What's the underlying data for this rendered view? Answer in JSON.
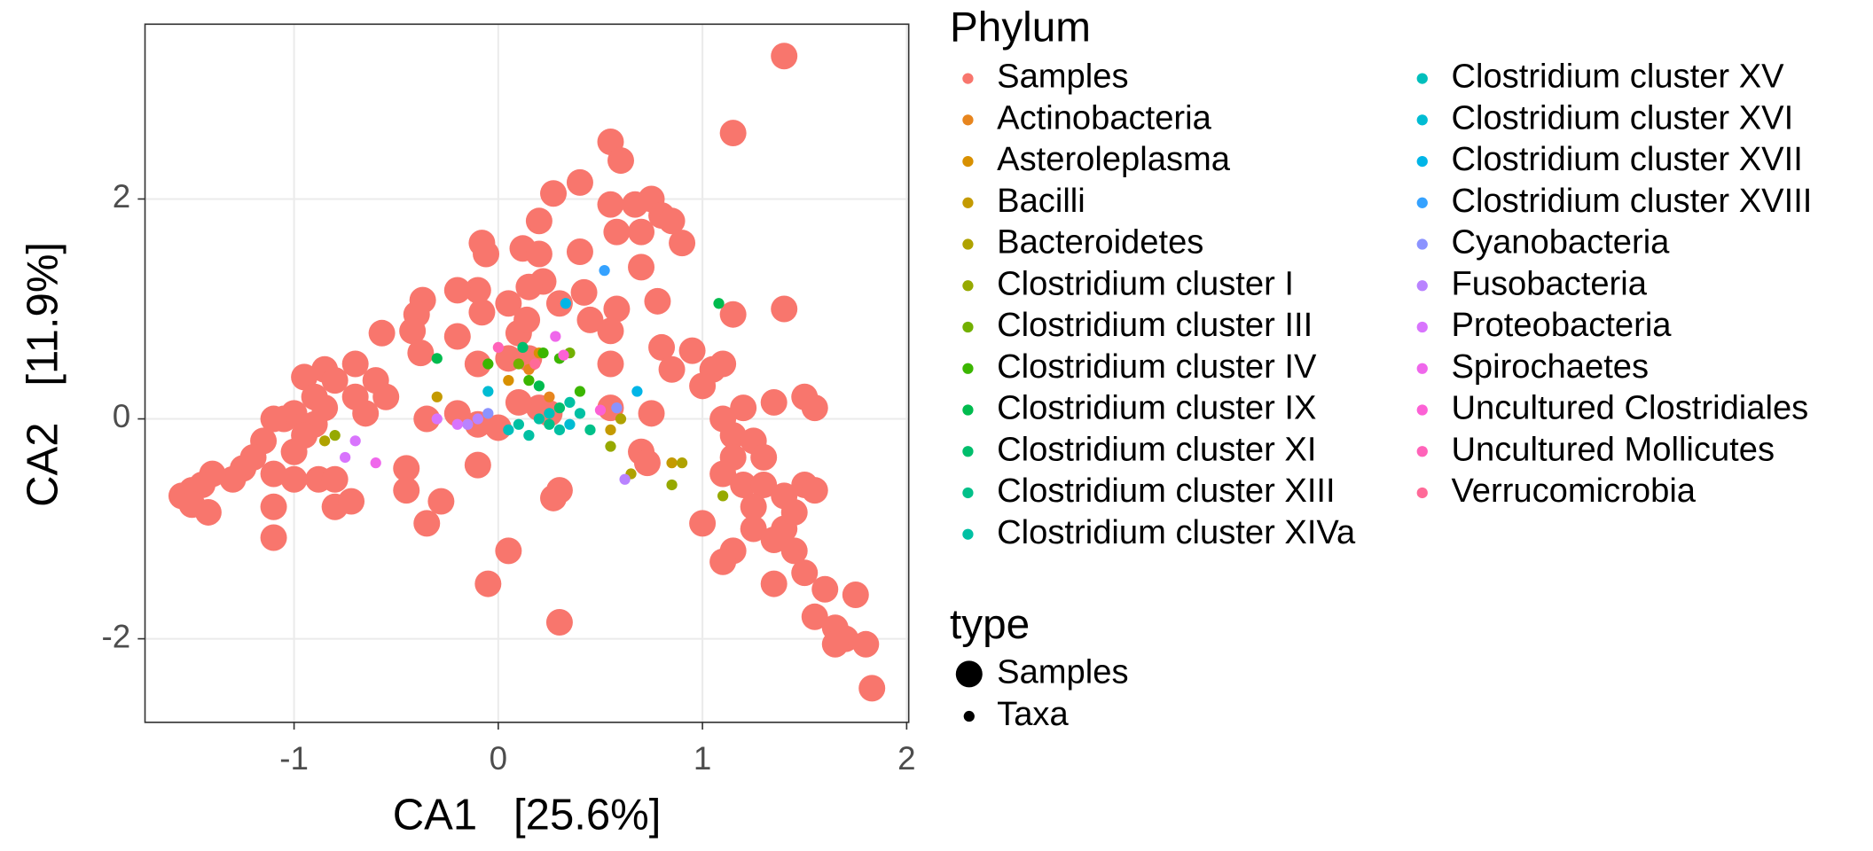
{
  "chart_data": {
    "type": "scatter",
    "xlabel": "CA1   [25.6%]",
    "ylabel": "CA2   [11.9%]",
    "xlim": [
      -1.73,
      2.01
    ],
    "ylim": [
      -2.76,
      3.59
    ],
    "xticks": [
      -1,
      0,
      1,
      2
    ],
    "yticks": [
      -2,
      0,
      2
    ],
    "grid": true,
    "legend_title": "Phylum",
    "size_legend": {
      "title": "type",
      "entries": [
        "Samples",
        "Taxa"
      ]
    },
    "series": [
      {
        "name": "Samples",
        "color": "#F8766D",
        "size_group": "Samples",
        "x": [
          1.4,
          1.15,
          0.55,
          0.6,
          0.4,
          0.27,
          0.55,
          0.67,
          0.75,
          0.8,
          0.85,
          0.7,
          0.58,
          0.9,
          0.2,
          -0.08,
          -0.06,
          0.12,
          0.2,
          0.4,
          0.7,
          0.22,
          0.15,
          0.05,
          -0.08,
          -0.1,
          -0.2,
          0.3,
          0.42,
          0.58,
          0.55,
          0.45,
          0.78,
          1.15,
          1.4,
          -0.37,
          -0.4,
          -0.42,
          -0.57,
          -0.2,
          -0.38,
          0.1,
          0.14,
          0.8,
          0.95,
          0.85,
          0.55,
          1.05,
          1.1,
          1.0,
          -0.1,
          0.05,
          0.15,
          -0.7,
          -0.85,
          -0.95,
          -0.8,
          -0.6,
          -0.55,
          -0.7,
          -0.9,
          -0.65,
          -0.85,
          -1.0,
          -1.05,
          -1.1,
          -0.9,
          -0.95,
          -1.0,
          -1.15,
          -1.2,
          -1.25,
          -1.1,
          -1.3,
          -1.4,
          -1.45,
          -1.5,
          -1.55,
          -1.5,
          -1.42,
          -1.1,
          -1.1,
          -1.0,
          -0.88,
          -0.8,
          -0.8,
          -0.72,
          -0.45,
          -0.45,
          -0.35,
          -0.28,
          -0.35,
          -0.2,
          -0.1,
          -0.1,
          0.0,
          -0.05,
          0.05,
          0.3,
          0.3,
          0.27,
          0.2,
          0.1,
          0.25,
          0.55,
          0.75,
          0.7,
          0.73,
          1.1,
          1.2,
          1.35,
          1.5,
          1.55,
          1.15,
          1.25,
          1.3,
          1.15,
          1.1,
          1.2,
          1.3,
          1.4,
          1.5,
          1.55,
          1.0,
          1.15,
          1.1,
          1.25,
          1.4,
          1.45,
          1.35,
          1.5,
          1.6,
          1.55,
          1.65,
          1.7,
          1.65,
          1.75,
          1.8,
          1.83,
          1.25,
          1.45,
          1.35
        ],
        "y": [
          3.3,
          2.6,
          2.52,
          2.35,
          2.15,
          2.05,
          1.95,
          1.95,
          2.0,
          1.85,
          1.8,
          1.7,
          1.7,
          1.6,
          1.8,
          1.6,
          1.5,
          1.55,
          1.5,
          1.52,
          1.38,
          1.25,
          1.2,
          1.05,
          0.97,
          1.17,
          1.17,
          1.05,
          1.15,
          1.0,
          0.8,
          0.9,
          1.07,
          0.95,
          1.0,
          1.08,
          0.95,
          0.8,
          0.78,
          0.75,
          0.6,
          0.78,
          0.9,
          0.65,
          0.62,
          0.45,
          0.5,
          0.45,
          0.5,
          0.3,
          0.5,
          0.55,
          0.55,
          0.5,
          0.45,
          0.38,
          0.35,
          0.35,
          0.2,
          0.2,
          0.2,
          0.05,
          0.1,
          0.05,
          0.0,
          0.0,
          -0.05,
          -0.15,
          -0.3,
          -0.2,
          -0.35,
          -0.45,
          -0.5,
          -0.55,
          -0.5,
          -0.6,
          -0.65,
          -0.7,
          -0.78,
          -0.85,
          -0.8,
          -1.08,
          -0.55,
          -0.55,
          -0.55,
          -0.8,
          -0.75,
          -0.45,
          -0.65,
          -0.95,
          -0.75,
          0.0,
          0.05,
          -0.05,
          -0.42,
          -0.08,
          -1.5,
          -1.2,
          -1.85,
          -0.65,
          -0.72,
          0.1,
          0.15,
          0.05,
          0.1,
          0.05,
          -0.3,
          -0.4,
          0.0,
          0.1,
          0.15,
          0.2,
          0.1,
          -0.15,
          -0.2,
          -0.35,
          -0.35,
          -0.5,
          -0.6,
          -0.6,
          -0.7,
          -0.6,
          -0.65,
          -0.95,
          -1.2,
          -1.3,
          -1.0,
          -1.0,
          -1.2,
          -1.5,
          -1.4,
          -1.55,
          -1.8,
          -1.9,
          -2.0,
          -2.05,
          -1.6,
          -2.05,
          -2.45,
          -0.8,
          -0.85,
          -1.1
        ]
      },
      {
        "name": "Actinobacteria",
        "color": "#E7851E",
        "size_group": "Taxa",
        "x": [
          0.25,
          0.15
        ],
        "y": [
          0.2,
          0.45
        ]
      },
      {
        "name": "Asteroleplasma",
        "color": "#D89000",
        "size_group": "Taxa",
        "x": [
          0.2,
          0.05
        ],
        "y": [
          0.6,
          0.35
        ]
      },
      {
        "name": "Bacilli",
        "color": "#C49A00",
        "size_group": "Taxa",
        "x": [
          0.55,
          0.85,
          -0.3
        ],
        "y": [
          -0.1,
          -0.4,
          0.2
        ]
      },
      {
        "name": "Bacteroidetes",
        "color": "#AFA200",
        "size_group": "Taxa",
        "x": [
          0.65,
          0.9,
          0.6,
          -0.85
        ],
        "y": [
          -0.5,
          -0.4,
          0.0,
          -0.2
        ]
      },
      {
        "name": "Clostridium cluster I",
        "color": "#96A900",
        "size_group": "Taxa",
        "x": [
          0.85,
          1.1,
          0.55,
          -0.8
        ],
        "y": [
          -0.6,
          -0.7,
          -0.25,
          -0.15
        ]
      },
      {
        "name": "Clostridium cluster III",
        "color": "#72B000",
        "size_group": "Taxa",
        "x": [
          0.1,
          0.35
        ],
        "y": [
          0.5,
          0.6
        ]
      },
      {
        "name": "Clostridium cluster IV",
        "color": "#3BB600",
        "size_group": "Taxa",
        "x": [
          -0.05,
          0.22,
          0.4,
          0.3,
          0.15
        ],
        "y": [
          0.5,
          0.6,
          0.25,
          0.55,
          0.35
        ]
      },
      {
        "name": "Clostridium cluster IX",
        "color": "#00BB4E",
        "size_group": "Taxa",
        "x": [
          -0.3,
          1.08,
          0.2
        ],
        "y": [
          0.55,
          1.05,
          0.3
        ]
      },
      {
        "name": "Clostridium cluster XI",
        "color": "#00BE6C",
        "size_group": "Taxa",
        "x": [
          0.12,
          0.3
        ],
        "y": [
          0.65,
          0.1
        ]
      },
      {
        "name": "Clostridium cluster XIII",
        "color": "#00C089",
        "size_group": "Taxa",
        "x": [
          0.25,
          0.45
        ],
        "y": [
          -0.05,
          -0.1
        ]
      },
      {
        "name": "Clostridium cluster XIVa",
        "color": "#00C0A3",
        "size_group": "Taxa",
        "x": [
          0.1,
          0.2,
          0.3,
          0.4,
          0.15,
          0.35
        ],
        "y": [
          -0.05,
          0.0,
          -0.1,
          0.05,
          -0.15,
          0.15
        ]
      },
      {
        "name": "Clostridium cluster XV",
        "color": "#00BFBC",
        "size_group": "Taxa",
        "x": [
          0.05,
          0.25
        ],
        "y": [
          -0.1,
          0.05
        ]
      },
      {
        "name": "Clostridium cluster XVI",
        "color": "#00BCD3",
        "size_group": "Taxa",
        "x": [
          0.35,
          -0.05
        ],
        "y": [
          -0.05,
          0.25
        ]
      },
      {
        "name": "Clostridium cluster XVII",
        "color": "#00B5E7",
        "size_group": "Taxa",
        "x": [
          0.33,
          0.68
        ],
        "y": [
          1.05,
          0.25
        ]
      },
      {
        "name": "Clostridium cluster XVIII",
        "color": "#35A2FF",
        "size_group": "Taxa",
        "x": [
          0.52
        ],
        "y": [
          1.35
        ]
      },
      {
        "name": "Cyanobacteria",
        "color": "#8B93FF",
        "size_group": "Taxa",
        "x": [
          -0.05,
          0.58
        ],
        "y": [
          0.05,
          0.1
        ]
      },
      {
        "name": "Fusobacteria",
        "color": "#B983FF",
        "size_group": "Taxa",
        "x": [
          -0.15,
          -0.1,
          0.62
        ],
        "y": [
          -0.05,
          0.0,
          -0.55
        ]
      },
      {
        "name": "Proteobacteria",
        "color": "#D874FD",
        "size_group": "Taxa",
        "x": [
          -0.7,
          -0.75,
          -0.2,
          -0.3
        ],
        "y": [
          -0.2,
          -0.35,
          -0.05,
          0.0
        ]
      },
      {
        "name": "Spirochaetes",
        "color": "#EF67EB",
        "size_group": "Taxa",
        "x": [
          0.28,
          -0.6
        ],
        "y": [
          0.75,
          -0.4
        ]
      },
      {
        "name": "Uncultured Clostridiales",
        "color": "#FC61D5",
        "size_group": "Taxa",
        "x": [
          0.32,
          0.5
        ],
        "y": [
          0.58,
          0.08
        ]
      },
      {
        "name": "Uncultured Mollicutes",
        "color": "#FF63B9",
        "size_group": "Taxa",
        "x": [
          0.0
        ],
        "y": [
          0.65
        ]
      },
      {
        "name": "Verrucomicrobia",
        "color": "#FF6A98",
        "size_group": "Taxa",
        "x": [
          0.18
        ],
        "y": [
          0.5
        ]
      }
    ]
  }
}
